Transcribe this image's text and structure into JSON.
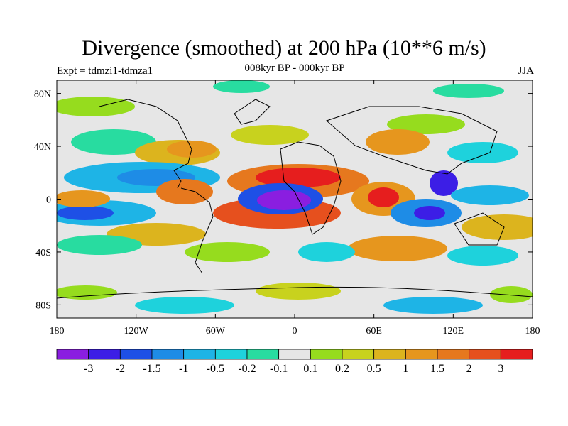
{
  "title": "Divergence (smoothed) at 200 hPa (10**6 m/s)",
  "left_subtitle": "Expt = tdmzi1-tdmza1",
  "center_subtitle": "008kyr BP - 000kyr BP",
  "right_subtitle": "JJA",
  "axes": {
    "lon_ticks": [
      "180",
      "120W",
      "60W",
      "0",
      "60E",
      "120E",
      "180"
    ],
    "lat_ticks": [
      "80N",
      "40N",
      "0",
      "40S",
      "80S"
    ]
  },
  "colorbar": {
    "labels": [
      "-3",
      "-2",
      "-1.5",
      "-1",
      "-0.5",
      "-0.2",
      "-0.1",
      "0.1",
      "0.2",
      "0.5",
      "1",
      "1.5",
      "2",
      "3"
    ],
    "colors": [
      "#8a1ee0",
      "#3c1ee6",
      "#1e50e6",
      "#1e8ce6",
      "#1eb4e6",
      "#1ed2dc",
      "#28dca0",
      "#e6e6e6",
      "#96dc1e",
      "#c8d21e",
      "#dcb41e",
      "#e6961e",
      "#e6781e",
      "#e6501e",
      "#e61e1e"
    ]
  }
}
